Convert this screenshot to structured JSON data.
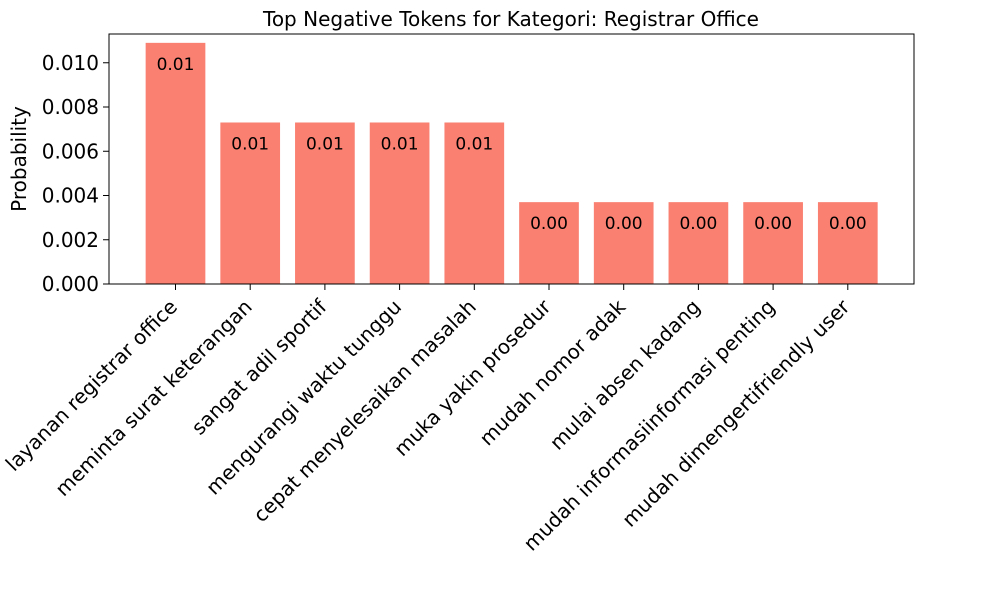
{
  "chart_data": {
    "type": "bar",
    "title": "Top Negative Tokens for Kategori: Registrar Office",
    "xlabel": "",
    "ylabel": "Probability",
    "categories": [
      "layanan registrar office",
      "meminta surat keterangan",
      "sangat adil sportif",
      "mengurangi waktu tunggu",
      "cepat menyelesaikan masalah",
      "muka yakin prosedur",
      "mudah nomor adak",
      "mulai absen kadang",
      "mudah informasiinformasi penting",
      "mudah dimengertifriendly user"
    ],
    "values": [
      0.0109,
      0.0073,
      0.0073,
      0.0073,
      0.0073,
      0.0037,
      0.0037,
      0.0037,
      0.0037,
      0.0037
    ],
    "data_labels": [
      "0.01",
      "0.01",
      "0.01",
      "0.01",
      "0.01",
      "0.00",
      "0.00",
      "0.00",
      "0.00",
      "0.00"
    ],
    "ylim": [
      0,
      0.0113
    ],
    "yticks": [
      0.0,
      0.002,
      0.004,
      0.006,
      0.008,
      0.01
    ],
    "ytick_labels": [
      "0.000",
      "0.002",
      "0.004",
      "0.006",
      "0.008",
      "0.010"
    ],
    "bar_color": "#fa8072",
    "grid": false
  }
}
